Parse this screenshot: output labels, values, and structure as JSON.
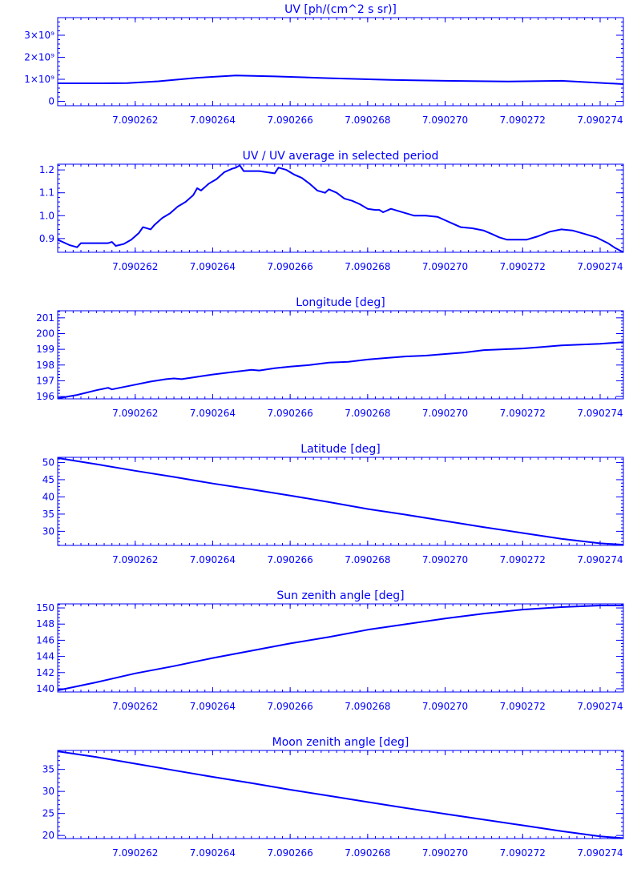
{
  "colors": {
    "line": "#0000ff",
    "background": "#ffffff"
  },
  "chart_data": [
    {
      "type": "line",
      "title": "UV [ph/(cm^2 s sr)]",
      "grid": false,
      "legend": "none",
      "xlim": [
        7.09026,
        7.0902746
      ],
      "ylim": [
        -200000000,
        3800000000
      ],
      "xticks": [
        7.090262,
        7.090264,
        7.090266,
        7.090268,
        7.09027,
        7.090272,
        7.090274
      ],
      "xtick_labels": [
        "7.090262",
        "7.090264",
        "7.090266",
        "7.090268",
        "7.090270",
        "7.090272",
        "7.090274"
      ],
      "yticks": [
        0,
        1000000000,
        2000000000,
        3000000000
      ],
      "ytick_labels": [
        "0",
        "1×10⁹",
        "2×10⁹",
        "3×10⁹"
      ],
      "x": [
        7.09026,
        7.090261,
        7.0902618,
        7.0902626,
        7.0902636,
        7.0902646,
        7.0902656,
        7.090267,
        7.0902686,
        7.09027,
        7.0902716,
        7.090273,
        7.0902746
      ],
      "y": [
        820000000,
        820000000,
        830000000,
        910000000,
        1070000000,
        1170000000,
        1130000000,
        1050000000,
        970000000,
        930000000,
        900000000,
        930000000,
        780000000
      ]
    },
    {
      "type": "line",
      "title": "UV / UV average in selected period",
      "grid": false,
      "legend": "none",
      "xlim": [
        7.09026,
        7.0902746
      ],
      "ylim": [
        0.84,
        1.225
      ],
      "xticks": [
        7.090262,
        7.090264,
        7.090266,
        7.090268,
        7.09027,
        7.090272,
        7.090274
      ],
      "xtick_labels": [
        "7.090262",
        "7.090264",
        "7.090266",
        "7.090268",
        "7.090270",
        "7.090272",
        "7.090274"
      ],
      "yticks": [
        0.9,
        1.0,
        1.1,
        1.2
      ],
      "ytick_labels": [
        "0.9",
        "1.0",
        "1.1",
        "1.2"
      ],
      "x": [
        7.09026,
        7.0902603,
        7.0902605,
        7.0902606,
        7.0902608,
        7.0902613,
        7.0902614,
        7.0902615,
        7.0902617,
        7.0902619,
        7.090262,
        7.0902621,
        7.0902622,
        7.0902624,
        7.0902625,
        7.0902627,
        7.0902629,
        7.0902631,
        7.0902633,
        7.0902635,
        7.0902636,
        7.0902637,
        7.0902639,
        7.0902641,
        7.0902643,
        7.0902645,
        7.0902646,
        7.0902647,
        7.0902648,
        7.090265,
        7.0902652,
        7.0902654,
        7.0902656,
        7.0902657,
        7.0902659,
        7.0902661,
        7.0902663,
        7.0902665,
        7.0902667,
        7.0902669,
        7.090267,
        7.0902672,
        7.0902674,
        7.0902676,
        7.0902678,
        7.090268,
        7.0902682,
        7.0902683,
        7.0902684,
        7.0902686,
        7.0902688,
        7.090269,
        7.0902692,
        7.0902695,
        7.0902698,
        7.09027,
        7.0902702,
        7.0902704,
        7.0902707,
        7.090271,
        7.0902712,
        7.0902714,
        7.0902716,
        7.0902718,
        7.0902721,
        7.0902724,
        7.0902727,
        7.090273,
        7.0902733,
        7.0902736,
        7.0902739,
        7.0902742,
        7.0902744,
        7.0902746
      ],
      "y": [
        0.895,
        0.872,
        0.862,
        0.88,
        0.88,
        0.88,
        0.885,
        0.868,
        0.876,
        0.895,
        0.91,
        0.925,
        0.95,
        0.94,
        0.96,
        0.99,
        1.01,
        1.04,
        1.06,
        1.09,
        1.12,
        1.11,
        1.14,
        1.16,
        1.19,
        1.205,
        1.21,
        1.22,
        1.195,
        1.195,
        1.195,
        1.19,
        1.185,
        1.21,
        1.2,
        1.18,
        1.165,
        1.14,
        1.11,
        1.1,
        1.115,
        1.1,
        1.075,
        1.065,
        1.05,
        1.03,
        1.025,
        1.025,
        1.015,
        1.03,
        1.02,
        1.01,
        1.0,
        1.0,
        0.995,
        0.98,
        0.965,
        0.95,
        0.945,
        0.935,
        0.92,
        0.905,
        0.895,
        0.895,
        0.895,
        0.91,
        0.93,
        0.94,
        0.935,
        0.92,
        0.905,
        0.88,
        0.858,
        0.84
      ]
    },
    {
      "type": "line",
      "title": "Longitude [deg]",
      "grid": false,
      "legend": "none",
      "xlim": [
        7.09026,
        7.0902746
      ],
      "ylim": [
        195.85,
        201.45
      ],
      "xticks": [
        7.090262,
        7.090264,
        7.090266,
        7.090268,
        7.09027,
        7.090272,
        7.090274
      ],
      "xtick_labels": [
        "7.090262",
        "7.090264",
        "7.090266",
        "7.090268",
        "7.090270",
        "7.090272",
        "7.090274"
      ],
      "yticks": [
        196,
        197,
        198,
        199,
        200,
        201
      ],
      "ytick_labels": [
        "196",
        "197",
        "198",
        "199",
        "200",
        "201"
      ],
      "x": [
        7.09026,
        7.0902605,
        7.090261,
        7.0902613,
        7.0902614,
        7.0902616,
        7.090262,
        7.0902624,
        7.0902628,
        7.090263,
        7.0902632,
        7.0902636,
        7.090264,
        7.0902645,
        7.090265,
        7.0902652,
        7.0902656,
        7.090266,
        7.0902665,
        7.090267,
        7.0902675,
        7.090268,
        7.0902685,
        7.090269,
        7.0902695,
        7.09027,
        7.0902705,
        7.090271,
        7.0902715,
        7.090272,
        7.0902725,
        7.090273,
        7.0902735,
        7.090274,
        7.0902746
      ],
      "y": [
        195.88,
        196.1,
        196.4,
        196.55,
        196.45,
        196.55,
        196.75,
        196.95,
        197.1,
        197.15,
        197.1,
        197.25,
        197.4,
        197.55,
        197.7,
        197.65,
        197.8,
        197.9,
        198.0,
        198.15,
        198.2,
        198.35,
        198.45,
        198.55,
        198.6,
        198.7,
        198.8,
        198.95,
        199.0,
        199.05,
        199.15,
        199.25,
        199.3,
        199.35,
        199.45
      ]
    },
    {
      "type": "line",
      "title": "Latitude [deg]",
      "grid": false,
      "legend": "none",
      "xlim": [
        7.09026,
        7.0902746
      ],
      "ylim": [
        25.9,
        51.5
      ],
      "xticks": [
        7.090262,
        7.090264,
        7.090266,
        7.090268,
        7.09027,
        7.090272,
        7.090274
      ],
      "xtick_labels": [
        "7.090262",
        "7.090264",
        "7.090266",
        "7.090268",
        "7.090270",
        "7.090272",
        "7.090274"
      ],
      "yticks": [
        30,
        35,
        40,
        45,
        50
      ],
      "ytick_labels": [
        "30",
        "35",
        "40",
        "45",
        "50"
      ],
      "x": [
        7.09026,
        7.090261,
        7.090262,
        7.090263,
        7.090264,
        7.090265,
        7.090266,
        7.090267,
        7.090268,
        7.090269,
        7.09027,
        7.090271,
        7.090272,
        7.090273,
        7.090274,
        7.0902746
      ],
      "y": [
        51.3,
        49.5,
        47.6,
        45.8,
        43.9,
        42.2,
        40.4,
        38.5,
        36.5,
        34.8,
        33.0,
        31.2,
        29.5,
        27.8,
        26.5,
        26.1
      ]
    },
    {
      "type": "line",
      "title": "Sun zenith angle [deg]",
      "grid": false,
      "legend": "none",
      "xlim": [
        7.09026,
        7.0902746
      ],
      "ylim": [
        139.6,
        150.5
      ],
      "xticks": [
        7.090262,
        7.090264,
        7.090266,
        7.090268,
        7.09027,
        7.090272,
        7.090274
      ],
      "xtick_labels": [
        "7.090262",
        "7.090264",
        "7.090266",
        "7.090268",
        "7.090270",
        "7.090272",
        "7.090274"
      ],
      "yticks": [
        140,
        142,
        144,
        146,
        148,
        150
      ],
      "ytick_labels": [
        "140",
        "142",
        "144",
        "146",
        "148",
        "150"
      ],
      "x": [
        7.09026,
        7.090261,
        7.090262,
        7.090263,
        7.090264,
        7.090265,
        7.090266,
        7.090267,
        7.090268,
        7.090269,
        7.09027,
        7.090271,
        7.090272,
        7.090273,
        7.090274,
        7.0902746
      ],
      "y": [
        139.8,
        140.8,
        141.9,
        142.8,
        143.8,
        144.7,
        145.6,
        146.4,
        147.3,
        148.0,
        148.7,
        149.3,
        149.8,
        150.1,
        150.3,
        150.3
      ]
    },
    {
      "type": "line",
      "title": "Moon zenith angle [deg]",
      "grid": false,
      "legend": "none",
      "xlim": [
        7.09026,
        7.0902746
      ],
      "ylim": [
        19.3,
        39.3
      ],
      "xticks": [
        7.090262,
        7.090264,
        7.090266,
        7.090268,
        7.09027,
        7.090272,
        7.090274
      ],
      "xtick_labels": [
        "7.090262",
        "7.090264",
        "7.090266",
        "7.090268",
        "7.090270",
        "7.090272",
        "7.090274"
      ],
      "yticks": [
        20,
        25,
        30,
        35
      ],
      "ytick_labels": [
        "20",
        "25",
        "30",
        "35"
      ],
      "x": [
        7.09026,
        7.090261,
        7.090262,
        7.090263,
        7.090264,
        7.090265,
        7.090266,
        7.090267,
        7.090268,
        7.090269,
        7.09027,
        7.090271,
        7.090272,
        7.090273,
        7.090274,
        7.0902746
      ],
      "y": [
        39.1,
        37.8,
        36.3,
        34.8,
        33.3,
        31.9,
        30.4,
        29.0,
        27.6,
        26.2,
        24.9,
        23.6,
        22.3,
        21.0,
        19.8,
        19.4
      ]
    }
  ]
}
